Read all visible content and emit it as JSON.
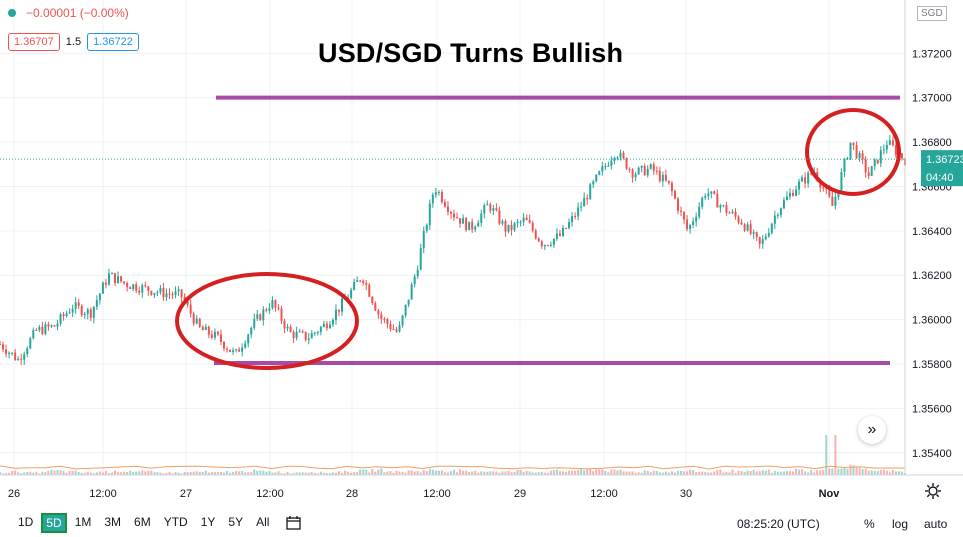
{
  "header": {
    "change": "−0.00001 (−0.00%)",
    "bid": "1.36707",
    "spread": "1.5",
    "ask": "1.36722",
    "currency": "SGD"
  },
  "title": "USD/SGD Turns Bullish",
  "price_label": {
    "price": "1.36723",
    "countdown": "04:40"
  },
  "bottom": {
    "ranges": [
      "1D",
      "5D",
      "1M",
      "3M",
      "6M",
      "YTD",
      "1Y",
      "5Y",
      "All"
    ],
    "active_range": "5D",
    "time": "08:25:20 (UTC)",
    "percent": "%",
    "log": "log",
    "auto": "auto"
  },
  "chart_data": {
    "type": "line",
    "title": "USD/SGD Turns Bullish",
    "xlabel": "",
    "ylabel": "",
    "x_tick_labels": [
      "26",
      "12:00",
      "27",
      "12:00",
      "28",
      "12:00",
      "29",
      "12:00",
      "30",
      "Nov"
    ],
    "y_tick_labels": [
      "1.37200",
      "1.37000",
      "1.36800",
      "1.36600",
      "1.36400",
      "1.36200",
      "1.36000",
      "1.35800",
      "1.35600",
      "1.35400"
    ],
    "ylim": [
      1.353,
      1.3744
    ],
    "grid": true,
    "series": [
      {
        "name": "",
        "x": [
          0,
          0.02,
          0.04,
          0.06,
          0.08,
          0.1,
          0.12,
          0.14,
          0.16,
          0.18,
          0.2,
          0.22,
          0.24,
          0.26,
          0.28,
          0.3,
          0.32,
          0.34,
          0.36,
          0.38,
          0.4,
          0.42,
          0.44,
          0.46,
          0.48,
          0.5,
          0.52,
          0.54,
          0.56,
          0.58,
          0.6,
          0.62,
          0.64,
          0.66,
          0.68,
          0.7,
          0.72,
          0.74,
          0.76,
          0.78,
          0.8,
          0.82,
          0.84,
          0.86,
          0.88,
          0.9,
          0.92,
          0.94,
          0.96,
          0.98,
          1.0
        ],
        "values": [
          1.3589,
          1.3582,
          1.3595,
          1.3597,
          1.3606,
          1.3603,
          1.362,
          1.3616,
          1.3614,
          1.3612,
          1.3611,
          1.3596,
          1.3592,
          1.3584,
          1.3598,
          1.3608,
          1.3594,
          1.3592,
          1.3598,
          1.3608,
          1.362,
          1.3601,
          1.3594,
          1.3622,
          1.366,
          1.3648,
          1.3641,
          1.3652,
          1.364,
          1.3645,
          1.3634,
          1.3638,
          1.365,
          1.3664,
          1.3676,
          1.3666,
          1.3668,
          1.366,
          1.364,
          1.3658,
          1.365,
          1.3644,
          1.3633,
          1.365,
          1.366,
          1.3667,
          1.3651,
          1.368,
          1.3665,
          1.368,
          1.3672
        ]
      }
    ],
    "volume": [
      0.3,
      0.4,
      0.3,
      0.5,
      0.4,
      0.3,
      0.4,
      0.5,
      0.4,
      0.3,
      0.3,
      0.4,
      0.3,
      0.4,
      0.5,
      0.4,
      0.3,
      0.4,
      0.3,
      0.4,
      0.5,
      0.6,
      0.4,
      0.5,
      0.6,
      0.5,
      0.4,
      0.5,
      0.4,
      0.5,
      0.4,
      0.5,
      0.6,
      0.7,
      0.5,
      0.4,
      0.5,
      0.4,
      0.5,
      0.4,
      0.5,
      0.4,
      0.5,
      0.4,
      0.6,
      0.5,
      5.0,
      1.2,
      0.6,
      0.5,
      0.4
    ],
    "annotations": {
      "resistance_level": 1.37,
      "support_level": 1.358,
      "last_price": 1.36723
    },
    "colors": {
      "up": "#26a69a",
      "down": "#ef5350",
      "line_marker": "#a64ca6",
      "circle": "#d42020"
    }
  }
}
